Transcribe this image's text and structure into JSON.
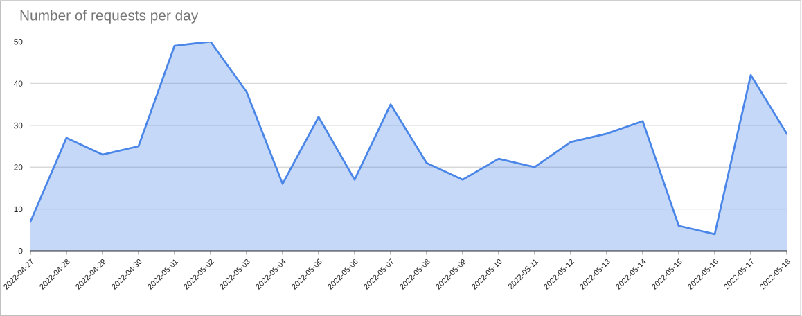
{
  "chart_data": {
    "type": "area",
    "title": "Number of requests per day",
    "categories": [
      "2022-04-27",
      "2022-04-28",
      "2022-04-29",
      "2022-04-30",
      "2022-05-01",
      "2022-05-02",
      "2022-05-03",
      "2022-05-04",
      "2022-05-05",
      "2022-05-06",
      "2022-05-07",
      "2022-05-08",
      "2022-05-09",
      "2022-05-10",
      "2022-05-11",
      "2022-05-12",
      "2022-05-13",
      "2022-05-14",
      "2022-05-15",
      "2022-05-16",
      "2022-05-17",
      "2022-05-18"
    ],
    "series": [
      {
        "color": "#4a86e8",
        "values": [
          7,
          27,
          23,
          25,
          49,
          50,
          38,
          16,
          32,
          17,
          35,
          21,
          17,
          22,
          20,
          26,
          28,
          31,
          6,
          4,
          42,
          28
        ]
      }
    ],
    "ylim": [
      0,
      50
    ],
    "yticks": [
      0,
      10,
      20,
      30,
      40,
      50
    ],
    "grid": "y",
    "legend": false
  }
}
